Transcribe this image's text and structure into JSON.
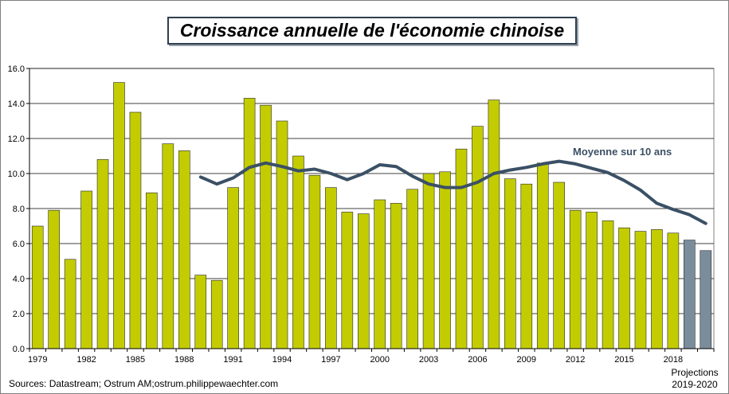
{
  "chart_data": {
    "type": "bar",
    "title": "Croissance annuelle de l'économie chinoise",
    "xlabel": "",
    "ylabel": "",
    "ylim": [
      0,
      16
    ],
    "yticks": [
      "0.0",
      "2.0",
      "4.0",
      "6.0",
      "8.0",
      "10.0",
      "12.0",
      "14.0",
      "16.0"
    ],
    "years": [
      1979,
      1980,
      1981,
      1982,
      1983,
      1984,
      1985,
      1986,
      1987,
      1988,
      1989,
      1990,
      1991,
      1992,
      1993,
      1994,
      1995,
      1996,
      1997,
      1998,
      1999,
      2000,
      2001,
      2002,
      2003,
      2004,
      2005,
      2006,
      2007,
      2008,
      2009,
      2010,
      2011,
      2012,
      2013,
      2014,
      2015,
      2016,
      2017,
      2018,
      2019,
      2020
    ],
    "xtick_labels": [
      "1979",
      "1982",
      "1985",
      "1988",
      "1991",
      "1994",
      "1997",
      "2000",
      "2003",
      "2006",
      "2009",
      "2012",
      "2015",
      "2018"
    ],
    "series": [
      {
        "name": "Croissance annuelle",
        "kind": "bar",
        "values": [
          7.0,
          7.9,
          5.1,
          9.0,
          10.8,
          15.2,
          13.5,
          8.9,
          11.7,
          11.3,
          4.2,
          3.9,
          9.2,
          14.3,
          13.9,
          13.0,
          11.0,
          9.9,
          9.2,
          7.8,
          7.7,
          8.5,
          8.3,
          9.1,
          10.0,
          10.1,
          11.4,
          12.7,
          14.2,
          9.7,
          9.4,
          10.6,
          9.5,
          7.9,
          7.8,
          7.3,
          6.9,
          6.7,
          6.8,
          6.6,
          6.2,
          5.6
        ],
        "projection_from_year": 2019
      },
      {
        "name": "Moyenne sur 10 ans",
        "kind": "line",
        "start_year": 1989,
        "values": [
          9.8,
          9.4,
          9.75,
          10.35,
          10.6,
          10.4,
          10.15,
          10.25,
          10.0,
          9.65,
          10.0,
          10.5,
          10.4,
          9.85,
          9.4,
          9.2,
          9.2,
          9.5,
          10.0,
          10.2,
          10.35,
          10.55,
          10.7,
          10.55,
          10.3,
          10.05,
          9.6,
          9.05,
          8.3,
          7.95,
          7.65,
          7.15
        ]
      }
    ],
    "colors": {
      "bar": "#c3cc00",
      "projection_bar": "#7a8d9b",
      "line": "#3b5065",
      "grid": "#000000"
    },
    "legend_label": "Moyenne sur 10 ans",
    "source": "Sources: Datastream; Ostrum AM;ostrum.philippewaechter.com",
    "projection_note": [
      "Projections",
      "2019-2020"
    ]
  }
}
